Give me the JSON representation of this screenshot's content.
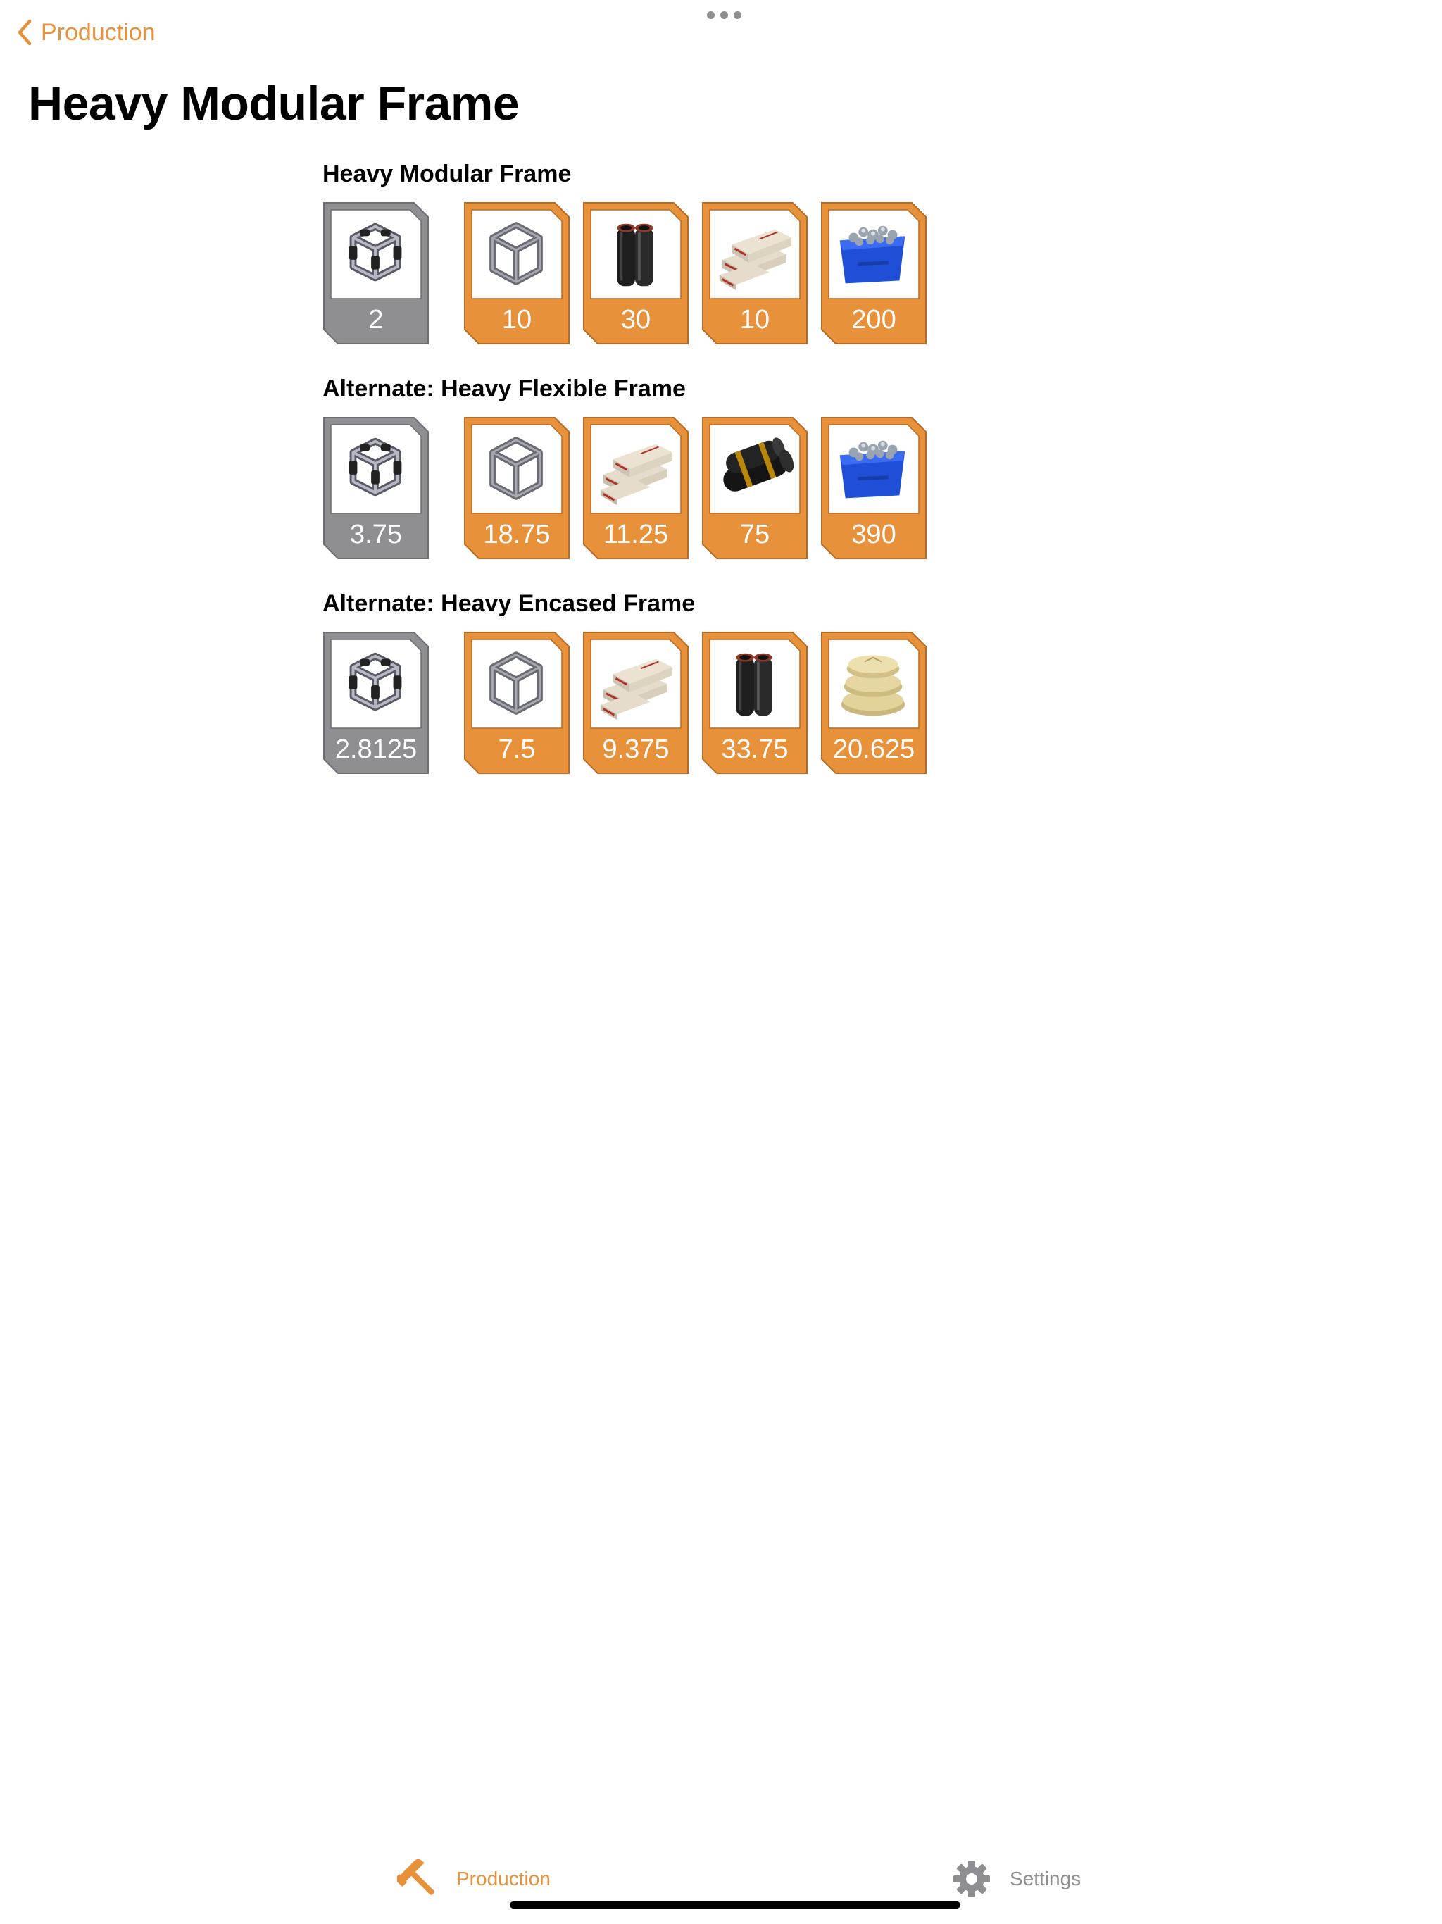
{
  "nav": {
    "back_label": "Production"
  },
  "page": {
    "title": "Heavy Modular Frame"
  },
  "colors": {
    "accent": "#e8913b",
    "output": "#8e8e93"
  },
  "recipes": [
    {
      "title": "Heavy Modular Frame",
      "output": {
        "icon": "heavy-modular-frame-icon",
        "value": "2"
      },
      "inputs": [
        {
          "icon": "modular-frame-icon",
          "value": "10"
        },
        {
          "icon": "steel-pipe-icon",
          "value": "30"
        },
        {
          "icon": "encased-industrial-beam-icon",
          "value": "10"
        },
        {
          "icon": "screw-icon",
          "value": "200"
        }
      ]
    },
    {
      "title": "Alternate: Heavy Flexible Frame",
      "output": {
        "icon": "heavy-modular-frame-icon",
        "value": "3.75"
      },
      "inputs": [
        {
          "icon": "modular-frame-icon",
          "value": "18.75"
        },
        {
          "icon": "encased-industrial-beam-icon",
          "value": "11.25"
        },
        {
          "icon": "rubber-icon",
          "value": "75"
        },
        {
          "icon": "screw-icon",
          "value": "390"
        }
      ]
    },
    {
      "title": "Alternate: Heavy Encased Frame",
      "output": {
        "icon": "heavy-modular-frame-icon",
        "value": "2.8125"
      },
      "inputs": [
        {
          "icon": "modular-frame-icon",
          "value": "7.5"
        },
        {
          "icon": "encased-industrial-beam-icon",
          "value": "9.375"
        },
        {
          "icon": "steel-pipe-icon",
          "value": "33.75"
        },
        {
          "icon": "concrete-icon",
          "value": "20.625"
        }
      ]
    }
  ],
  "tabs": {
    "production_label": "Production",
    "settings_label": "Settings"
  }
}
